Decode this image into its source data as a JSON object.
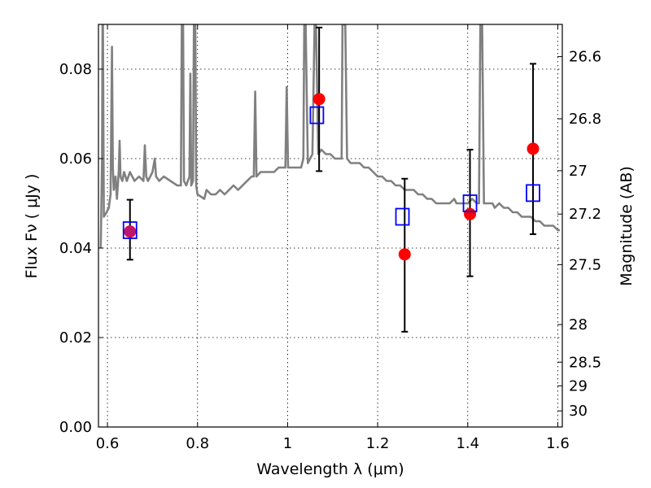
{
  "chart_data": {
    "type": "scatter",
    "title": "",
    "xlabel": "Wavelength  λ (μm)",
    "ylabel": "Flux  Fν  ( μJy )",
    "y2label": "Magnitude (AB)",
    "xlim": [
      0.58,
      1.61
    ],
    "ylim": [
      0.0,
      0.09
    ],
    "grid": true,
    "x_ticks": [
      {
        "value": 0.6,
        "label": "0.6"
      },
      {
        "value": 0.8,
        "label": "0.8"
      },
      {
        "value": 1.0,
        "label": "1"
      },
      {
        "value": 1.2,
        "label": "1.2"
      },
      {
        "value": 1.4,
        "label": "1.4"
      },
      {
        "value": 1.6,
        "label": "1.6"
      }
    ],
    "y_ticks": [
      {
        "value": 0.0,
        "label": "0.00"
      },
      {
        "value": 0.02,
        "label": "0.02"
      },
      {
        "value": 0.04,
        "label": "0.04"
      },
      {
        "value": 0.06,
        "label": "0.06"
      },
      {
        "value": 0.08,
        "label": "0.08"
      }
    ],
    "y2_ticks": [
      {
        "flux": 0.0828,
        "label": "26.6"
      },
      {
        "flux": 0.0689,
        "label": "26.8"
      },
      {
        "flux": 0.0573,
        "label": "27"
      },
      {
        "flux": 0.0476,
        "label": "27.2"
      },
      {
        "flux": 0.0363,
        "label": "27.5"
      },
      {
        "flux": 0.0229,
        "label": "28"
      },
      {
        "flux": 0.0145,
        "label": "28.5"
      },
      {
        "flux": 0.0092,
        "label": "29"
      },
      {
        "flux": 0.0036,
        "label": "30"
      }
    ],
    "series": [
      {
        "kind": "line",
        "color": "#808080",
        "points": [
          [
            0.585,
            0.04
          ],
          [
            0.588,
            0.06
          ],
          [
            0.589,
            0.09
          ],
          [
            0.59,
            0.09
          ],
          [
            0.592,
            0.047
          ],
          [
            0.598,
            0.048
          ],
          [
            0.603,
            0.049
          ],
          [
            0.607,
            0.052
          ],
          [
            0.61,
            0.085
          ],
          [
            0.612,
            0.058
          ],
          [
            0.614,
            0.053
          ],
          [
            0.618,
            0.056
          ],
          [
            0.621,
            0.051
          ],
          [
            0.625,
            0.057
          ],
          [
            0.627,
            0.064
          ],
          [
            0.629,
            0.056
          ],
          [
            0.633,
            0.055
          ],
          [
            0.637,
            0.057
          ],
          [
            0.643,
            0.055
          ],
          [
            0.65,
            0.057
          ],
          [
            0.66,
            0.055
          ],
          [
            0.67,
            0.056
          ],
          [
            0.68,
            0.055
          ],
          [
            0.683,
            0.063
          ],
          [
            0.686,
            0.056
          ],
          [
            0.69,
            0.055
          ],
          [
            0.7,
            0.057
          ],
          [
            0.705,
            0.06
          ],
          [
            0.708,
            0.056
          ],
          [
            0.715,
            0.055
          ],
          [
            0.725,
            0.056
          ],
          [
            0.74,
            0.055
          ],
          [
            0.755,
            0.054
          ],
          [
            0.763,
            0.054
          ],
          [
            0.765,
            0.09
          ],
          [
            0.768,
            0.09
          ],
          [
            0.77,
            0.055
          ],
          [
            0.775,
            0.054
          ],
          [
            0.782,
            0.056
          ],
          [
            0.784,
            0.079
          ],
          [
            0.786,
            0.054
          ],
          [
            0.79,
            0.055
          ],
          [
            0.792,
            0.09
          ],
          [
            0.795,
            0.09
          ],
          [
            0.797,
            0.054
          ],
          [
            0.8,
            0.052
          ],
          [
            0.815,
            0.051
          ],
          [
            0.82,
            0.053
          ],
          [
            0.83,
            0.052
          ],
          [
            0.84,
            0.052
          ],
          [
            0.85,
            0.053
          ],
          [
            0.86,
            0.052
          ],
          [
            0.87,
            0.053
          ],
          [
            0.88,
            0.054
          ],
          [
            0.89,
            0.053
          ],
          [
            0.9,
            0.054
          ],
          [
            0.91,
            0.055
          ],
          [
            0.92,
            0.056
          ],
          [
            0.925,
            0.056
          ],
          [
            0.928,
            0.075
          ],
          [
            0.931,
            0.056
          ],
          [
            0.94,
            0.057
          ],
          [
            0.95,
            0.057
          ],
          [
            0.96,
            0.057
          ],
          [
            0.97,
            0.057
          ],
          [
            0.98,
            0.058
          ],
          [
            0.99,
            0.058
          ],
          [
            0.995,
            0.058
          ],
          [
            0.998,
            0.076
          ],
          [
            1.001,
            0.058
          ],
          [
            1.01,
            0.058
          ],
          [
            1.02,
            0.058
          ],
          [
            1.03,
            0.058
          ],
          [
            1.035,
            0.06
          ],
          [
            1.037,
            0.09
          ],
          [
            1.04,
            0.09
          ],
          [
            1.045,
            0.059
          ],
          [
            1.05,
            0.06
          ],
          [
            1.055,
            0.061
          ],
          [
            1.06,
            0.09
          ],
          [
            1.063,
            0.09
          ],
          [
            1.068,
            0.061
          ],
          [
            1.075,
            0.062
          ],
          [
            1.085,
            0.061
          ],
          [
            1.095,
            0.061
          ],
          [
            1.105,
            0.06
          ],
          [
            1.115,
            0.06
          ],
          [
            1.12,
            0.06
          ],
          [
            1.122,
            0.09
          ],
          [
            1.128,
            0.09
          ],
          [
            1.132,
            0.06
          ],
          [
            1.14,
            0.059
          ],
          [
            1.15,
            0.059
          ],
          [
            1.16,
            0.059
          ],
          [
            1.17,
            0.058
          ],
          [
            1.18,
            0.058
          ],
          [
            1.19,
            0.057
          ],
          [
            1.2,
            0.056
          ],
          [
            1.21,
            0.056
          ],
          [
            1.22,
            0.055
          ],
          [
            1.23,
            0.055
          ],
          [
            1.24,
            0.054
          ],
          [
            1.25,
            0.054
          ],
          [
            1.26,
            0.053
          ],
          [
            1.27,
            0.053
          ],
          [
            1.28,
            0.053
          ],
          [
            1.29,
            0.052
          ],
          [
            1.3,
            0.052
          ],
          [
            1.31,
            0.051
          ],
          [
            1.32,
            0.051
          ],
          [
            1.33,
            0.05
          ],
          [
            1.34,
            0.05
          ],
          [
            1.35,
            0.05
          ],
          [
            1.36,
            0.05
          ],
          [
            1.37,
            0.051
          ],
          [
            1.375,
            0.05
          ],
          [
            1.385,
            0.05
          ],
          [
            1.395,
            0.05
          ],
          [
            1.4,
            0.05
          ],
          [
            1.41,
            0.051
          ],
          [
            1.42,
            0.05
          ],
          [
            1.425,
            0.05
          ],
          [
            1.428,
            0.09
          ],
          [
            1.432,
            0.09
          ],
          [
            1.436,
            0.05
          ],
          [
            1.445,
            0.05
          ],
          [
            1.455,
            0.05
          ],
          [
            1.46,
            0.049
          ],
          [
            1.47,
            0.05
          ],
          [
            1.48,
            0.049
          ],
          [
            1.49,
            0.049
          ],
          [
            1.5,
            0.048
          ],
          [
            1.51,
            0.048
          ],
          [
            1.52,
            0.047
          ],
          [
            1.53,
            0.047
          ],
          [
            1.54,
            0.047
          ],
          [
            1.55,
            0.046
          ],
          [
            1.56,
            0.046
          ],
          [
            1.57,
            0.045
          ],
          [
            1.58,
            0.045
          ],
          [
            1.59,
            0.045
          ],
          [
            1.6,
            0.044
          ],
          [
            1.605,
            0.044
          ]
        ]
      },
      {
        "kind": "scatter-errorbar",
        "marker": "circle",
        "color": "#ff0000",
        "x": [
          0.65,
          1.07,
          1.26,
          1.405,
          1.545
        ],
        "y": [
          0.0437,
          0.0733,
          0.0386,
          0.0476,
          0.0622
        ],
        "y_err_low": [
          0.0374,
          0.0572,
          0.0213,
          0.0337,
          0.0431
        ],
        "y_err_high": [
          0.0508,
          0.0893,
          0.0555,
          0.062,
          0.0812
        ]
      },
      {
        "kind": "scatter",
        "marker": "square-open",
        "color": "#0000ff",
        "x": [
          0.65,
          1.065,
          1.255,
          1.405,
          1.545
        ],
        "y": [
          0.044,
          0.0697,
          0.047,
          0.05,
          0.0523
        ]
      }
    ]
  }
}
